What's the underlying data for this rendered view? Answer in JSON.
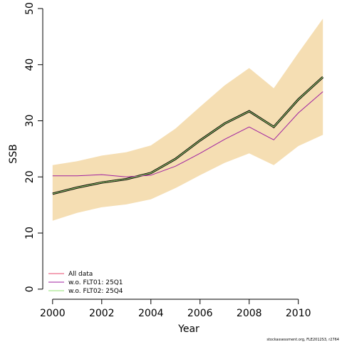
{
  "chart_data": {
    "type": "line",
    "xlabel": "Year",
    "ylabel": "SSB",
    "xlim": [
      1999.6,
      2011.4
    ],
    "ylim": [
      -1.8,
      50
    ],
    "x_ticks": [
      2000,
      2002,
      2004,
      2006,
      2008,
      2010
    ],
    "y_ticks": [
      0,
      10,
      20,
      30,
      40,
      50
    ],
    "x": [
      2000,
      2001,
      2002,
      2003,
      2004,
      2005,
      2006,
      2007,
      2008,
      2009,
      2010,
      2011
    ],
    "confidence_band": {
      "color": "#f5deb3",
      "lower": [
        12.2,
        13.6,
        14.6,
        15.1,
        16.0,
        18.0,
        20.3,
        22.5,
        24.2,
        22.1,
        25.5,
        27.5
      ],
      "upper": [
        22.1,
        22.8,
        23.8,
        24.4,
        25.6,
        28.6,
        32.5,
        36.3,
        39.4,
        35.8,
        42.1,
        48.2
      ]
    },
    "series": [
      {
        "name": "All data",
        "color": "#e8486e",
        "values": [
          17.0,
          18.1,
          19.0,
          19.6,
          20.7,
          23.2,
          26.5,
          29.5,
          31.7,
          28.9,
          33.8,
          37.8
        ]
      },
      {
        "name": "w.o. FLT01: 25Q1",
        "color": "#a020a0",
        "values": [
          20.2,
          20.2,
          20.4,
          20.0,
          20.3,
          21.9,
          24.2,
          26.7,
          28.9,
          26.6,
          31.4,
          35.2
        ]
      },
      {
        "name": "w.o. FLT02: 25Q4",
        "color": "#90e070",
        "values": [
          17.0,
          18.1,
          19.0,
          19.6,
          20.7,
          23.2,
          26.5,
          29.5,
          31.7,
          28.9,
          33.8,
          37.8
        ]
      }
    ],
    "best_estimate": {
      "color": "#000000",
      "values": [
        17.0,
        18.1,
        19.0,
        19.6,
        20.7,
        23.2,
        26.5,
        29.5,
        31.7,
        28.9,
        33.8,
        37.8
      ]
    },
    "legend_position": "bottom-left",
    "grid": false,
    "credit": "stockassessment.org, FLE2012S3, r2764"
  }
}
